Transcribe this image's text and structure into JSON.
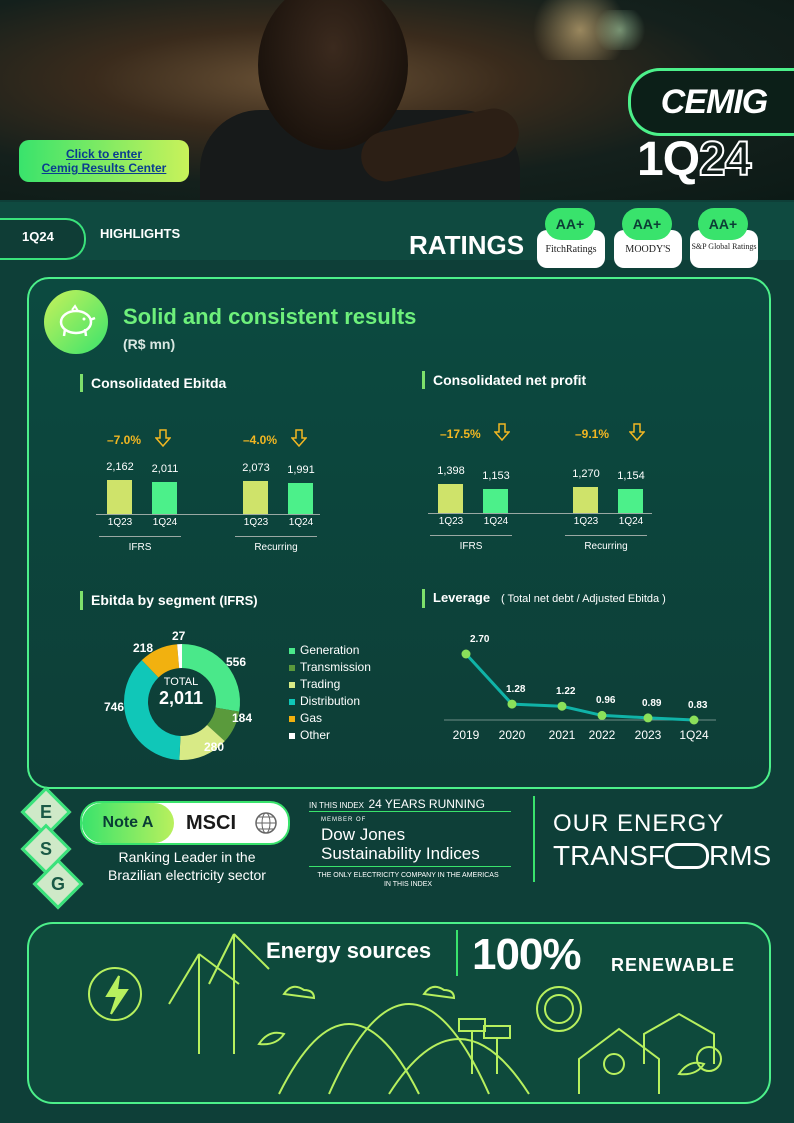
{
  "hero": {
    "cta_line1": "Click to enter",
    "cta_line2": "Cemig Results Center",
    "logo": "CEMIG",
    "quarter_a": "1Q",
    "quarter_b": "24"
  },
  "highlights": {
    "tab": "1Q24",
    "title": "HIGHLIGHTS",
    "ratings_label": "RATINGS",
    "ratings": [
      {
        "grade": "AA+",
        "agency": "FitchRatings"
      },
      {
        "grade": "AA+",
        "agency": "MOODY'S"
      },
      {
        "grade": "AA+",
        "agency": "S&P Global Ratings"
      }
    ]
  },
  "results": {
    "title": "Solid and consistent results",
    "subtitle": "(R$ mn)",
    "ebitda_label": "Consolidated Ebitda",
    "profit_label": "Consolidated net profit",
    "segment_label": "Ebitda by segment",
    "segment_label_paren": "(IFRS)",
    "leverage_label": "Leverage",
    "leverage_note": "( Total net debt  / Adjusted Ebitda )",
    "donut_total_label": "TOTAL",
    "donut_total": "2,011"
  },
  "chart_data": [
    {
      "type": "bar",
      "title": "Consolidated Ebitda",
      "groups": [
        {
          "name": "IFRS",
          "change": "–7.0%",
          "categories": [
            "1Q23",
            "1Q24"
          ],
          "values": [
            2162,
            2011
          ],
          "labels": [
            "2,162",
            "2,011"
          ]
        },
        {
          "name": "Recurring",
          "change": "–4.0%",
          "categories": [
            "1Q23",
            "1Q24"
          ],
          "values": [
            2073,
            1991
          ],
          "labels": [
            "2,073",
            "1,991"
          ]
        }
      ],
      "colors": [
        "#cfe36a",
        "#4cf08a"
      ]
    },
    {
      "type": "bar",
      "title": "Consolidated net profit",
      "groups": [
        {
          "name": "IFRS",
          "change": "–17.5%",
          "categories": [
            "1Q23",
            "1Q24"
          ],
          "values": [
            1398,
            1153
          ],
          "labels": [
            "1,398",
            "1,153"
          ]
        },
        {
          "name": "Recurring",
          "change": "–9.1%",
          "categories": [
            "1Q23",
            "1Q24"
          ],
          "values": [
            1270,
            1154
          ],
          "labels": [
            "1,270",
            "1,154"
          ]
        }
      ],
      "colors": [
        "#cfe36a",
        "#4cf08a"
      ]
    },
    {
      "type": "pie",
      "title": "Ebitda by segment",
      "slices": [
        {
          "name": "Generation",
          "value": 556,
          "label": "556",
          "color": "#4ae88a"
        },
        {
          "name": "Transmission",
          "value": 184,
          "label": "184",
          "color": "#5a9a3c"
        },
        {
          "name": "Trading",
          "value": 280,
          "label": "280",
          "color": "#d8ea86"
        },
        {
          "name": "Distribution",
          "value": 746,
          "label": "746",
          "color": "#10c7b8"
        },
        {
          "name": "Gas",
          "value": 218,
          "label": "218",
          "color": "#f2b10f"
        },
        {
          "name": "Other",
          "value": 27,
          "label": "27",
          "color": "#ffffff"
        }
      ],
      "total": 2011
    },
    {
      "type": "line",
      "title": "Leverage",
      "x": [
        "2019",
        "2020",
        "2021",
        "2022",
        "2023",
        "1Q24"
      ],
      "values": [
        2.7,
        1.28,
        1.22,
        0.96,
        0.89,
        0.83
      ],
      "labels": [
        "2.70",
        "1.28",
        "1.22",
        "0.96",
        "0.89",
        "0.83"
      ],
      "line_color": "#10b3a8",
      "point_color": "#8be05a"
    }
  ],
  "esg": {
    "letters": [
      "E",
      "S",
      "G"
    ],
    "msci_note": "Note A",
    "msci_logo": "MSCI",
    "msci_caption_1": "Ranking Leader in the",
    "msci_caption_2": "Brazilian electricity sector",
    "dj_top_a": "IN THIS INDEX",
    "dj_top_b": "24 YEARS RUNNING",
    "dj_member": "MEMBER OF",
    "dj_name_1": "Dow Jones",
    "dj_name_2": "Sustainability Indices",
    "dj_foot_1": "THE ONLY ELECTRICITY COMPANY IN THE AMERICAS",
    "dj_foot_2": "IN THIS INDEX",
    "slogan_1": "OUR ENERGY",
    "slogan_2a": "TRANSF",
    "slogan_2b": "RMS"
  },
  "energy": {
    "label": "Energy sources",
    "pct": "100%",
    "renewable": "RENEWABLE"
  }
}
